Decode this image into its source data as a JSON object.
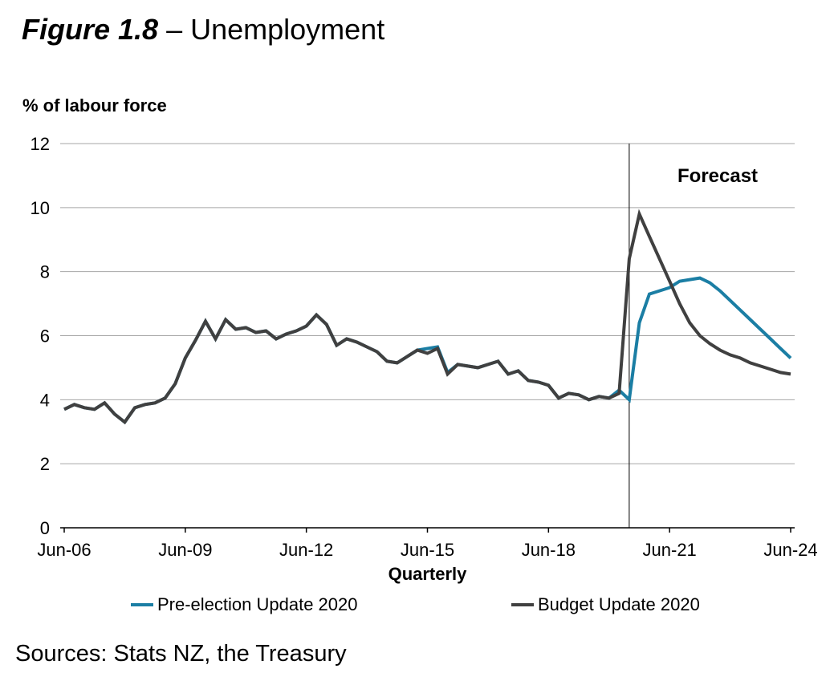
{
  "title": {
    "figure_label": "Figure 1.8",
    "title_rest": " – Unemployment"
  },
  "y_axis_title": "% of labour force",
  "forecast_label": "Forecast",
  "x_axis_title": "Quarterly",
  "sources": "Sources: Stats NZ, the Treasury",
  "legend": [
    {
      "label": "Pre-election Update 2020",
      "color": "#1b7ea4"
    },
    {
      "label": "Budget Update 2020",
      "color": "#404040"
    }
  ],
  "colors": {
    "gridline": "#a6a6a6",
    "axis": "#000000",
    "forecast_divider": "#000000"
  },
  "chart_data": {
    "type": "line",
    "title": "Figure 1.8 – Unemployment",
    "ylabel": "% of labour force",
    "xlabel": "Quarterly",
    "frequency": "quarterly",
    "ylim": [
      0,
      12
    ],
    "y_ticks": [
      0,
      2,
      4,
      6,
      8,
      10,
      12
    ],
    "x_tick_labels": [
      "Jun-06",
      "Jun-09",
      "Jun-12",
      "Jun-15",
      "Jun-18",
      "Jun-21",
      "Jun-24"
    ],
    "x_tick_quarters": [
      0,
      12,
      24,
      36,
      48,
      60,
      72
    ],
    "n_points": 73,
    "x_start_label": "Jun-06",
    "x_end_label": "Jun-24",
    "forecast_divider_at_quarter": 56,
    "annotation": "Forecast",
    "grid": "horizontal",
    "legend_position": "bottom",
    "series": [
      {
        "name": "Pre-election Update 2020",
        "color": "#1b7ea4",
        "values": [
          3.7,
          3.85,
          3.75,
          3.7,
          3.9,
          3.55,
          3.3,
          3.75,
          3.85,
          3.9,
          4.05,
          4.5,
          5.3,
          5.85,
          6.45,
          5.9,
          6.5,
          6.2,
          6.25,
          6.1,
          6.15,
          5.9,
          6.05,
          6.15,
          6.3,
          6.65,
          6.35,
          5.7,
          5.9,
          5.8,
          5.65,
          5.5,
          5.2,
          5.15,
          5.35,
          5.55,
          5.6,
          5.65,
          4.85,
          5.1,
          5.05,
          5.0,
          5.1,
          5.2,
          4.8,
          4.9,
          4.6,
          4.55,
          4.45,
          4.05,
          4.2,
          4.15,
          4.0,
          4.1,
          4.05,
          4.3,
          4.0,
          6.4,
          7.3,
          7.4,
          7.5,
          7.7,
          7.75,
          7.8,
          7.65,
          7.4,
          7.1,
          6.8,
          6.5,
          6.2,
          5.9,
          5.6,
          5.3
        ]
      },
      {
        "name": "Budget Update 2020",
        "color": "#404040",
        "values": [
          3.7,
          3.85,
          3.75,
          3.7,
          3.9,
          3.55,
          3.3,
          3.75,
          3.85,
          3.9,
          4.05,
          4.5,
          5.3,
          5.85,
          6.45,
          5.9,
          6.5,
          6.2,
          6.25,
          6.1,
          6.15,
          5.9,
          6.05,
          6.15,
          6.3,
          6.65,
          6.35,
          5.7,
          5.9,
          5.8,
          5.65,
          5.5,
          5.2,
          5.15,
          5.35,
          5.55,
          5.45,
          5.6,
          4.8,
          5.1,
          5.05,
          5.0,
          5.1,
          5.2,
          4.8,
          4.9,
          4.6,
          4.55,
          4.45,
          4.05,
          4.2,
          4.15,
          4.0,
          4.1,
          4.05,
          4.2,
          8.4,
          9.8,
          9.1,
          8.4,
          7.7,
          7.0,
          6.4,
          6.0,
          5.75,
          5.55,
          5.4,
          5.3,
          5.15,
          5.05,
          4.95,
          4.85,
          4.8
        ]
      }
    ]
  }
}
